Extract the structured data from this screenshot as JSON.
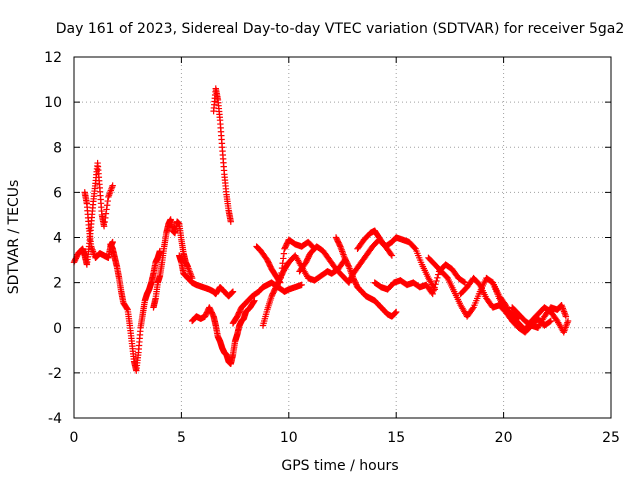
{
  "chart_data": {
    "type": "scatter",
    "title": "Day 161 of 2023, Sidereal Day-to-day VTEC variation (SDTVAR) for receiver 5ga2",
    "xlabel": "GPS time / hours",
    "ylabel": "SDTVAR / TECUs",
    "xlim": [
      0,
      25
    ],
    "ylim": [
      -4,
      12
    ],
    "xticks": [
      0,
      5,
      10,
      15,
      20,
      25
    ],
    "yticks": [
      -4,
      -2,
      0,
      2,
      4,
      6,
      8,
      10,
      12
    ],
    "xtick_labels": [
      "0",
      "5",
      "10",
      "15",
      "20",
      "25"
    ],
    "ytick_labels": [
      "-4",
      "-2",
      "0",
      "2",
      "4",
      "6",
      "8",
      "10",
      "12"
    ],
    "grid": true,
    "marker": "plus",
    "color": "#ff0000",
    "series": [
      {
        "name": "trace-a",
        "x": [
          0.0,
          0.2,
          0.4,
          0.5,
          0.6,
          0.7,
          0.8,
          0.9,
          1.0,
          1.1,
          1.2,
          1.3,
          1.4,
          1.6,
          1.8
        ],
        "y": [
          2.9,
          3.3,
          3.5,
          3.2,
          2.8,
          3.6,
          4.6,
          5.6,
          6.4,
          7.3,
          6.2,
          5.0,
          4.5,
          5.8,
          6.3
        ]
      },
      {
        "name": "trace-b",
        "x": [
          0.5,
          0.6,
          0.7,
          0.8,
          1.0,
          1.2,
          1.4,
          1.6,
          1.7,
          1.8
        ],
        "y": [
          6.0,
          5.5,
          4.4,
          3.6,
          3.1,
          3.3,
          3.2,
          3.1,
          3.6,
          3.8
        ]
      },
      {
        "name": "trace-c",
        "x": [
          1.7,
          1.8,
          1.9,
          2.0,
          2.1,
          2.2,
          2.3,
          2.5,
          2.6,
          2.7,
          2.8,
          2.9,
          3.0,
          3.1,
          3.2,
          3.3,
          3.4,
          3.5,
          3.6,
          3.7,
          3.8,
          3.9,
          4.0
        ],
        "y": [
          3.7,
          3.5,
          3.1,
          2.7,
          2.2,
          1.6,
          1.1,
          0.8,
          0.1,
          -0.7,
          -1.5,
          -1.9,
          -1.1,
          0.0,
          0.6,
          1.2,
          1.5,
          1.7,
          2.0,
          2.4,
          2.9,
          3.1,
          3.4
        ]
      },
      {
        "name": "trace-d",
        "x": [
          3.7,
          3.8,
          3.9,
          4.0,
          4.1,
          4.2,
          4.3,
          4.4,
          4.5,
          4.6,
          4.7,
          4.8,
          4.9,
          5.0,
          5.1,
          5.2,
          5.3,
          5.5
        ],
        "y": [
          0.9,
          1.3,
          2.0,
          2.3,
          2.9,
          3.6,
          4.2,
          4.6,
          4.8,
          4.3,
          4.2,
          4.7,
          4.6,
          3.9,
          3.3,
          2.9,
          2.7,
          2.2
        ]
      },
      {
        "name": "trace-e",
        "x": [
          4.9,
          5.0,
          5.1,
          5.3,
          5.5,
          5.7,
          6.0,
          6.3,
          6.5,
          6.6,
          6.8,
          7.0,
          7.2,
          7.4
        ],
        "y": [
          3.2,
          2.9,
          2.4,
          2.2,
          2.0,
          1.9,
          1.8,
          1.7,
          1.6,
          1.5,
          1.8,
          1.6,
          1.4,
          1.6
        ]
      },
      {
        "name": "trace-f",
        "x": [
          6.5,
          6.6,
          6.7,
          6.8,
          6.9,
          7.0,
          7.1,
          7.2,
          7.3
        ],
        "y": [
          9.6,
          10.6,
          10.1,
          9.2,
          8.0,
          6.8,
          5.9,
          5.2,
          4.7
        ]
      },
      {
        "name": "trace-g",
        "x": [
          5.5,
          5.7,
          5.9,
          6.1,
          6.3,
          6.5,
          6.6,
          6.7,
          6.8,
          6.9,
          7.0,
          7.1,
          7.2,
          7.3,
          7.4,
          7.5,
          7.6,
          7.7,
          7.8,
          7.9,
          8.0,
          8.2,
          8.4
        ],
        "y": [
          0.3,
          0.5,
          0.4,
          0.5,
          0.9,
          0.5,
          0.1,
          -0.4,
          -0.6,
          -0.9,
          -1.1,
          -1.2,
          -1.5,
          -1.6,
          -1.2,
          -0.6,
          -0.3,
          0.1,
          0.3,
          0.4,
          0.7,
          0.9,
          1.2
        ]
      },
      {
        "name": "trace-h",
        "x": [
          7.4,
          7.6,
          7.8,
          8.0,
          8.3,
          8.6,
          8.8,
          9.0,
          9.2,
          9.5,
          9.8,
          10.0,
          10.3,
          10.6
        ],
        "y": [
          0.2,
          0.5,
          0.9,
          1.1,
          1.4,
          1.6,
          1.8,
          1.9,
          2.0,
          1.8,
          1.6,
          1.7,
          1.8,
          1.9
        ]
      },
      {
        "name": "trace-i",
        "x": [
          8.8,
          9.0,
          9.2,
          9.4,
          9.6,
          9.8,
          10.0,
          10.3,
          10.6,
          10.9,
          11.2,
          11.5,
          11.8,
          12.0,
          12.3,
          12.6
        ],
        "y": [
          0.1,
          0.8,
          1.4,
          1.8,
          2.2,
          2.6,
          2.9,
          3.2,
          2.7,
          2.2,
          2.1,
          2.3,
          2.5,
          2.4,
          2.6,
          3.0
        ]
      },
      {
        "name": "trace-j",
        "x": [
          8.5,
          8.7,
          9.0,
          9.2,
          9.4,
          9.6,
          9.8,
          10.0,
          10.3,
          10.6,
          10.9,
          11.2
        ],
        "y": [
          3.6,
          3.4,
          3.0,
          2.6,
          2.3,
          2.0,
          3.5,
          3.9,
          3.7,
          3.6,
          3.8,
          3.5
        ]
      },
      {
        "name": "trace-k",
        "x": [
          10.5,
          10.8,
          11.0,
          11.3,
          11.6,
          11.9,
          12.2,
          12.5,
          12.8,
          13.0,
          13.3,
          13.6,
          13.9,
          14.2,
          14.5,
          14.8
        ],
        "y": [
          2.5,
          2.9,
          3.3,
          3.6,
          3.4,
          3.0,
          2.6,
          2.3,
          2.0,
          2.4,
          2.8,
          3.2,
          3.6,
          3.9,
          3.6,
          3.2
        ]
      },
      {
        "name": "trace-l",
        "x": [
          12.2,
          12.4,
          12.6,
          12.8,
          13.0,
          13.2,
          13.4,
          13.6,
          13.8,
          14.0,
          14.2,
          14.4,
          14.6,
          14.8,
          15.0
        ],
        "y": [
          4.0,
          3.6,
          3.1,
          2.7,
          2.2,
          1.8,
          1.6,
          1.4,
          1.3,
          1.2,
          1.0,
          0.8,
          0.6,
          0.5,
          0.7
        ]
      },
      {
        "name": "trace-m",
        "x": [
          13.2,
          13.5,
          13.8,
          14.0,
          14.2,
          14.5,
          14.8,
          15.0,
          15.3,
          15.6,
          15.9,
          16.2,
          16.5,
          16.8
        ],
        "y": [
          3.5,
          3.9,
          4.2,
          4.3,
          4.0,
          3.6,
          3.8,
          4.0,
          3.9,
          3.8,
          3.5,
          2.8,
          2.2,
          1.7
        ]
      },
      {
        "name": "trace-n",
        "x": [
          14.0,
          14.3,
          14.6,
          14.9,
          15.2,
          15.5,
          15.8,
          16.1,
          16.4,
          16.7,
          17.0,
          17.3,
          17.6,
          17.9,
          18.2
        ],
        "y": [
          2.0,
          1.8,
          1.7,
          2.0,
          2.1,
          1.9,
          2.0,
          1.8,
          1.9,
          1.5,
          2.5,
          2.8,
          2.6,
          2.2,
          2.0
        ]
      },
      {
        "name": "trace-o",
        "x": [
          16.5,
          16.8,
          17.1,
          17.4,
          17.7,
          18.0,
          18.3,
          18.6,
          18.9,
          19.2,
          19.5,
          19.8,
          20.1,
          20.4,
          20.7
        ],
        "y": [
          3.1,
          2.8,
          2.5,
          2.2,
          1.6,
          1.0,
          0.5,
          0.9,
          1.6,
          2.2,
          2.0,
          1.3,
          0.8,
          0.6,
          0.4
        ]
      },
      {
        "name": "trace-p",
        "x": [
          18.0,
          18.3,
          18.6,
          18.9,
          19.2,
          19.5,
          19.8,
          20.1,
          20.4,
          20.7,
          21.0,
          21.3,
          21.6,
          21.9,
          22.2
        ],
        "y": [
          1.5,
          1.8,
          2.2,
          1.9,
          1.3,
          0.9,
          1.0,
          0.7,
          0.3,
          0.0,
          -0.2,
          0.1,
          0.4,
          0.1,
          0.3
        ]
      },
      {
        "name": "trace-q",
        "x": [
          19.5,
          19.8,
          20.1,
          20.4,
          20.7,
          21.0,
          21.3,
          21.6,
          21.9,
          22.2,
          22.5,
          22.8,
          23.0
        ],
        "y": [
          2.0,
          1.4,
          1.0,
          0.5,
          0.2,
          -0.1,
          0.3,
          0.6,
          0.9,
          0.7,
          0.3,
          -0.2,
          0.3
        ]
      },
      {
        "name": "trace-r",
        "x": [
          20.4,
          20.7,
          21.0,
          21.3,
          21.6,
          21.9,
          22.2,
          22.5,
          22.7,
          22.9
        ],
        "y": [
          0.9,
          0.6,
          0.3,
          0.1,
          0.0,
          0.5,
          0.9,
          0.8,
          1.0,
          0.5
        ]
      }
    ]
  }
}
